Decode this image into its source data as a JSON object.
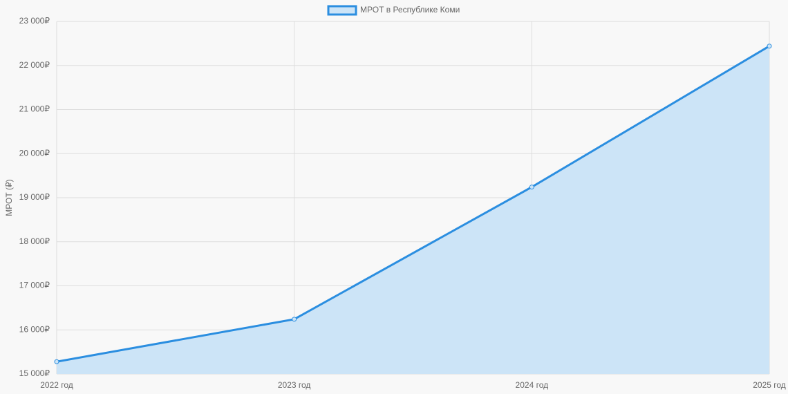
{
  "chart_data": {
    "type": "line",
    "legend": "МРОТ в Республике Коми",
    "y_label": "МРОТ (₽)",
    "categories": [
      "2022 год",
      "2023 год",
      "2024 год",
      "2025 год"
    ],
    "series": [
      {
        "name": "МРОТ в Республике Коми",
        "color": "#2b8ee0",
        "fill": "#cce4f7",
        "values": [
          15279,
          16242,
          19242,
          22440
        ]
      }
    ],
    "ylim": [
      15000,
      23000
    ],
    "yticks": [
      {
        "value": 15000,
        "label": "15 000₽"
      },
      {
        "value": 16000,
        "label": "16 000₽"
      },
      {
        "value": 17000,
        "label": "17 000₽"
      },
      {
        "value": 18000,
        "label": "18 000₽"
      },
      {
        "value": 19000,
        "label": "19 000₽"
      },
      {
        "value": 20000,
        "label": "20 000₽"
      },
      {
        "value": 21000,
        "label": "21 000₽"
      },
      {
        "value": 22000,
        "label": "22 000₽"
      },
      {
        "value": 23000,
        "label": "23 000₽"
      }
    ],
    "grid": true,
    "area": true
  }
}
